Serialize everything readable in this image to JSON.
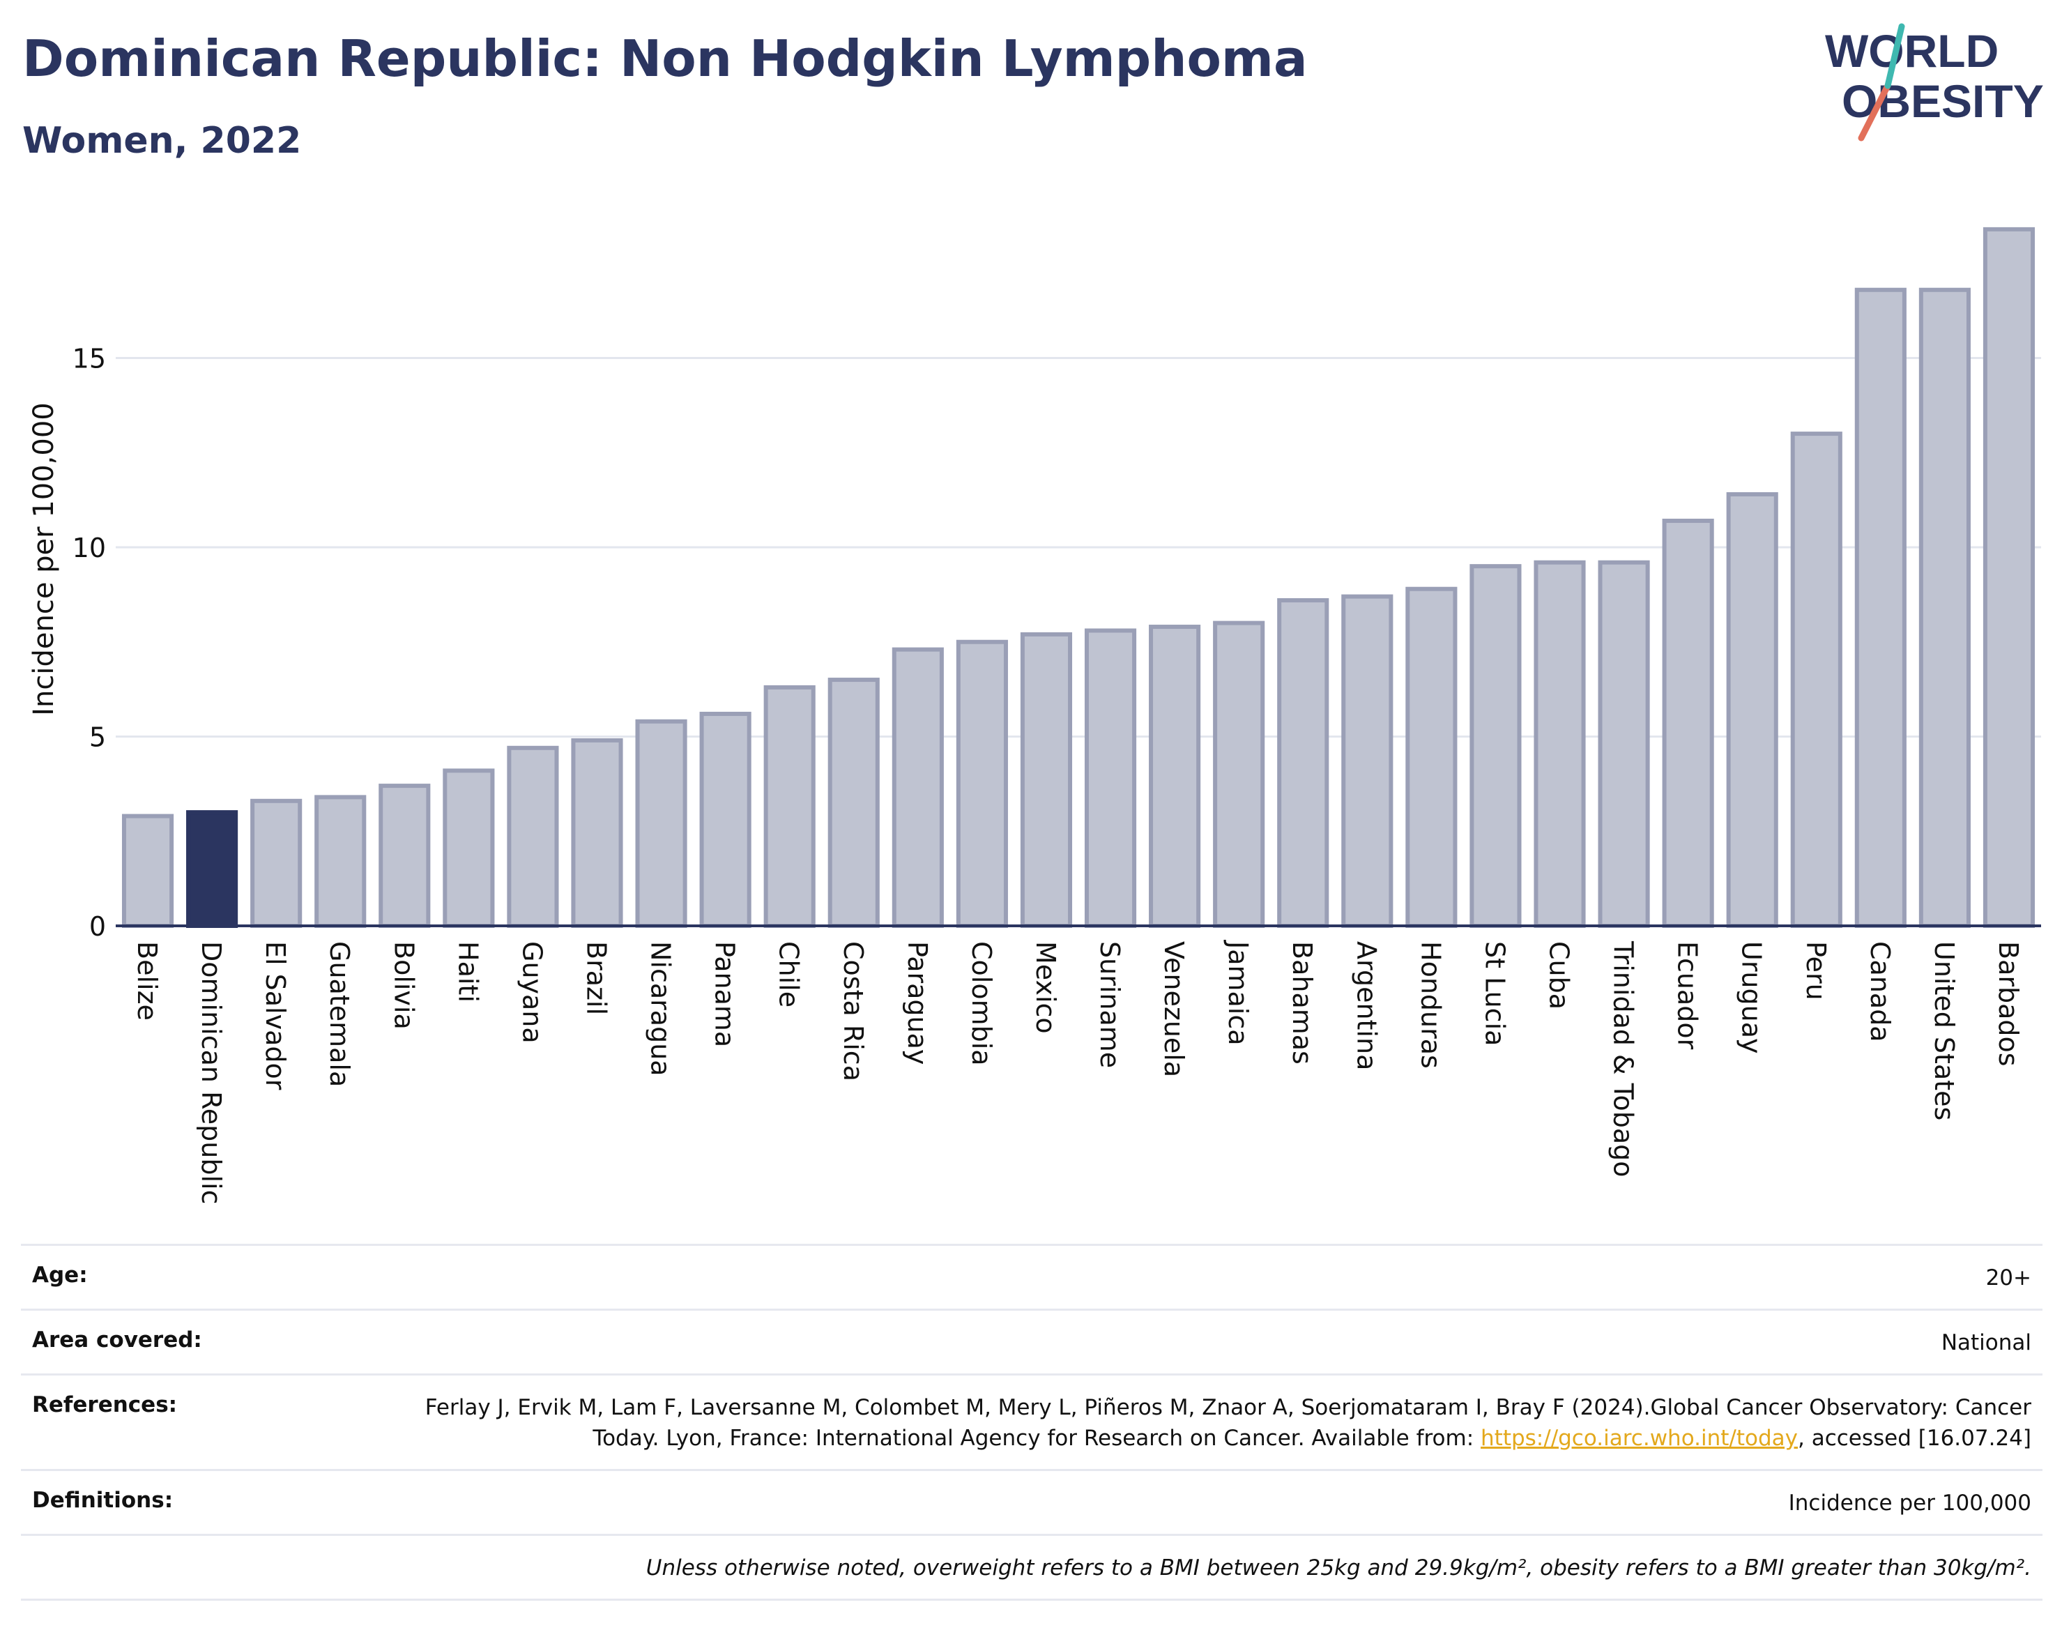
{
  "header": {
    "title": "Dominican Republic: Non Hodgkin Lymphoma",
    "subtitle": "Women, 2022"
  },
  "logo": {
    "line1": "WORLD",
    "line2": "OBESITY"
  },
  "colors": {
    "highlight": "#2b3560",
    "bar_fill": "#bfc3d1",
    "bar_stroke": "#9a9fb6",
    "link": "#e3a81c"
  },
  "chart_data": {
    "type": "bar",
    "ylabel": "Incidence per 100,000",
    "ylim": [
      0,
      18.5
    ],
    "yticks": [
      0,
      5,
      10,
      15
    ],
    "grid": true,
    "highlight": "Dominican Republic",
    "categories": [
      "Belize",
      "Dominican Republic",
      "El Salvador",
      "Guatemala",
      "Bolivia",
      "Haiti",
      "Guyana",
      "Brazil",
      "Nicaragua",
      "Panama",
      "Chile",
      "Costa Rica",
      "Paraguay",
      "Colombia",
      "Mexico",
      "Suriname",
      "Venezuela",
      "Jamaica",
      "Bahamas",
      "Argentina",
      "Honduras",
      "St Lucia",
      "Cuba",
      "Trinidad & Tobago",
      "Ecuador",
      "Uruguay",
      "Peru",
      "Canada",
      "United States",
      "Barbados"
    ],
    "values": [
      2.9,
      3.0,
      3.3,
      3.4,
      3.7,
      4.1,
      4.7,
      4.9,
      5.4,
      5.6,
      6.3,
      6.5,
      7.3,
      7.5,
      7.7,
      7.8,
      7.9,
      8.0,
      8.6,
      8.7,
      8.9,
      9.5,
      9.6,
      9.6,
      10.7,
      11.4,
      13.0,
      16.8,
      16.8,
      18.4
    ]
  },
  "meta": {
    "age_label": "Age:",
    "age_value": "20+",
    "area_label": "Area covered:",
    "area_value": "National",
    "references_label": "References:",
    "references_text1": "Ferlay J, Ervik M, Lam F, Laversanne M, Colombet M, Mery L, Piñeros M, Znaor A, Soerjomataram I, Bray F (2024).Global Cancer Observatory: Cancer Today. Lyon, France: International Agency for Research on Cancer. Available from: ",
    "references_link": "https://gco.iarc.who.int/today",
    "references_text2": ", accessed [16.07.24]",
    "definitions_label": "Definitions:",
    "definitions_value": "Incidence per 100,000",
    "note": "Unless otherwise noted, overweight refers to a BMI between 25kg and 29.9kg/m², obesity refers to a BMI greater than 30kg/m²."
  }
}
